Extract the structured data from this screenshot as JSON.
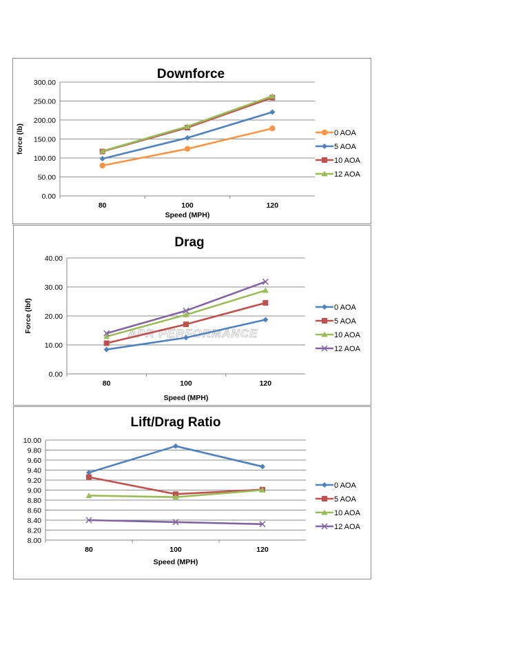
{
  "watermark": "APR PERFORMANCE",
  "chart_data": [
    {
      "type": "line",
      "title": "Downforce",
      "xlabel": "Speed (MPH)",
      "ylabel": "force (lb)",
      "categories": [
        "80",
        "100",
        "120"
      ],
      "ylim": [
        0,
        300
      ],
      "yticks": [
        "0.00",
        "50.00",
        "100.00",
        "150.00",
        "200.00",
        "250.00",
        "300.00"
      ],
      "grid": true,
      "legend": "right",
      "series": [
        {
          "name": "0 AOA",
          "values": [
            80,
            124,
            178
          ],
          "color": "#F79646",
          "marker": "circle"
        },
        {
          "name": "5 AOA",
          "values": [
            98,
            153,
            221
          ],
          "color": "#4F81BD",
          "marker": "diamond"
        },
        {
          "name": "10 AOA",
          "values": [
            117,
            180,
            259
          ],
          "color": "#C0504D",
          "marker": "square"
        },
        {
          "name": "12 AOA",
          "values": [
            118,
            183,
            263
          ],
          "color": "#9BBB59",
          "marker": "triangle"
        }
      ]
    },
    {
      "type": "line",
      "title": "Drag",
      "xlabel": "Speed (MPH)",
      "ylabel": "Force (lbf)",
      "categories": [
        "80",
        "100",
        "120"
      ],
      "ylim": [
        0,
        40
      ],
      "yticks": [
        "0.00",
        "10.00",
        "20.00",
        "30.00",
        "40.00"
      ],
      "grid": true,
      "legend": "right",
      "series": [
        {
          "name": "0 AOA",
          "values": [
            8.4,
            12.5,
            18.7
          ],
          "color": "#4F81BD",
          "marker": "diamond"
        },
        {
          "name": "5 AOA",
          "values": [
            10.6,
            17.1,
            24.5
          ],
          "color": "#C0504D",
          "marker": "square"
        },
        {
          "name": "10 AOA",
          "values": [
            12.9,
            20.4,
            28.8
          ],
          "color": "#9BBB59",
          "marker": "triangle"
        },
        {
          "name": "12 AOA",
          "values": [
            14.0,
            21.8,
            31.8
          ],
          "color": "#8064A2",
          "marker": "x"
        }
      ]
    },
    {
      "type": "line",
      "title": "Lift/Drag Ratio",
      "xlabel": "Speed (MPH)",
      "ylabel": "",
      "categories": [
        "80",
        "100",
        "120"
      ],
      "ylim": [
        8,
        10
      ],
      "yticks": [
        "8.00",
        "8.20",
        "8.40",
        "8.60",
        "8.80",
        "9.00",
        "9.20",
        "9.40",
        "9.60",
        "9.80",
        "10.00"
      ],
      "grid": true,
      "legend": "right",
      "series": [
        {
          "name": "0 AOA",
          "values": [
            9.35,
            9.88,
            9.47
          ],
          "color": "#4F81BD",
          "marker": "diamond"
        },
        {
          "name": "5 AOA",
          "values": [
            9.26,
            8.92,
            9.01
          ],
          "color": "#C0504D",
          "marker": "square"
        },
        {
          "name": "10 AOA",
          "values": [
            8.89,
            8.86,
            9.0
          ],
          "color": "#9BBB59",
          "marker": "triangle"
        },
        {
          "name": "12 AOA",
          "values": [
            8.4,
            8.36,
            8.32
          ],
          "color": "#8064A2",
          "marker": "x"
        }
      ]
    }
  ]
}
